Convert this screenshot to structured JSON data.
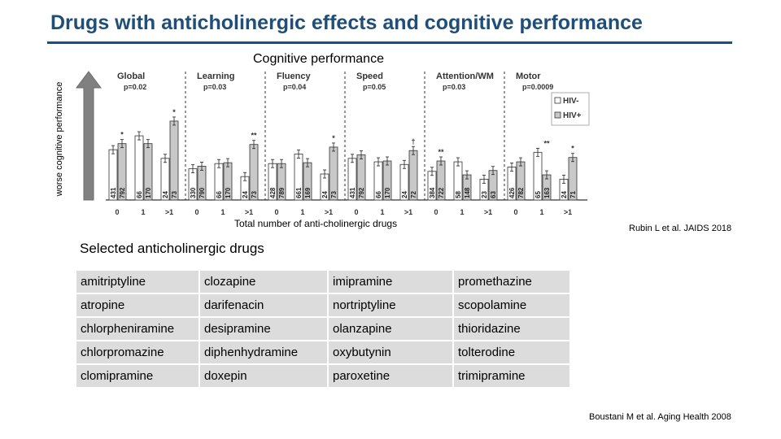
{
  "slide": {
    "title": "Drugs with anticholinergic effects and cognitive performance",
    "citation_chart": "Rubin L et al. JAIDS 2018",
    "citation_list": "Boustani M et al. Aging Health 2008",
    "list_title": "Selected anticholinergic drugs",
    "arrow_label": "worse cognitive performance"
  },
  "chart_data": {
    "type": "bar",
    "title": "Cognitive performance",
    "xlabel": "Total number of anti-cholinergic drugs",
    "ylabel": "worse cognitive performance",
    "legend": [
      "HIV-",
      "HIV+"
    ],
    "legend_position": "top-right",
    "categories": [
      "0",
      "1",
      ">1"
    ],
    "panels": [
      {
        "name": "Global",
        "p": "p=0.02",
        "neg": [
          5.8,
          7.4,
          4.8
        ],
        "pos": [
          6.5,
          6.5,
          9.1
        ],
        "n_neg": [
          "431",
          "66",
          "24"
        ],
        "n_pos": [
          "792",
          "170",
          "73"
        ],
        "sig": [
          "*",
          "",
          "*"
        ]
      },
      {
        "name": "Learning",
        "p": "p=0.03",
        "neg": [
          3.6,
          4.2,
          2.7
        ],
        "pos": [
          3.9,
          4.3,
          6.4
        ],
        "n_neg": [
          "330",
          "66",
          "24"
        ],
        "n_pos": [
          "790",
          "170",
          "73"
        ],
        "sig": [
          "",
          "",
          "**"
        ]
      },
      {
        "name": "Fluency",
        "p": "p=0.04",
        "neg": [
          4.2,
          5.3,
          3.0
        ],
        "pos": [
          4.2,
          4.3,
          6.1
        ],
        "n_neg": [
          "428",
          "661",
          "24"
        ],
        "n_pos": [
          "789",
          "169",
          "73"
        ],
        "sig": [
          "",
          "",
          "*"
        ]
      },
      {
        "name": "Speed",
        "p": "p=0.05",
        "neg": [
          4.8,
          4.4,
          4.1
        ],
        "pos": [
          5.2,
          4.5,
          5.7
        ],
        "n_neg": [
          "431",
          "66",
          "24"
        ],
        "n_pos": [
          "792",
          "170",
          "72"
        ],
        "sig": [
          "",
          "",
          "†"
        ]
      },
      {
        "name": "Attention/WM",
        "p": "p=0.03",
        "neg": [
          3.3,
          4.4,
          2.4
        ],
        "pos": [
          4.5,
          2.9,
          3.4
        ],
        "n_neg": [
          "384",
          "58",
          "23"
        ],
        "n_pos": [
          "722",
          "148",
          "63"
        ],
        "sig": [
          "**",
          "",
          ""
        ]
      },
      {
        "name": "Motor",
        "p": "p=0.0009",
        "neg": [
          3.8,
          5.5,
          2.4
        ],
        "pos": [
          4.4,
          2.9,
          4.9
        ],
        "n_neg": [
          "426",
          "65",
          "24"
        ],
        "n_pos": [
          "782",
          "163",
          "71"
        ],
        "sig": [
          "",
          "**",
          "*"
        ]
      }
    ],
    "ylim": [
      0,
      12
    ],
    "grid": false
  },
  "drugs": {
    "rows": [
      [
        "amitriptyline",
        "clozapine",
        "imipramine",
        "promethazine"
      ],
      [
        "atropine",
        "darifenacin",
        "nortriptyline",
        "scopolamine"
      ],
      [
        "chlorpheniramine",
        "desipramine",
        "olanzapine",
        "thioridazine"
      ],
      [
        "chlorpromazine",
        "diphenhydramine",
        "oxybutynin",
        "tolterodine"
      ],
      [
        "clomipramine",
        "doxepin",
        "paroxetine",
        "trimipramine"
      ]
    ]
  }
}
